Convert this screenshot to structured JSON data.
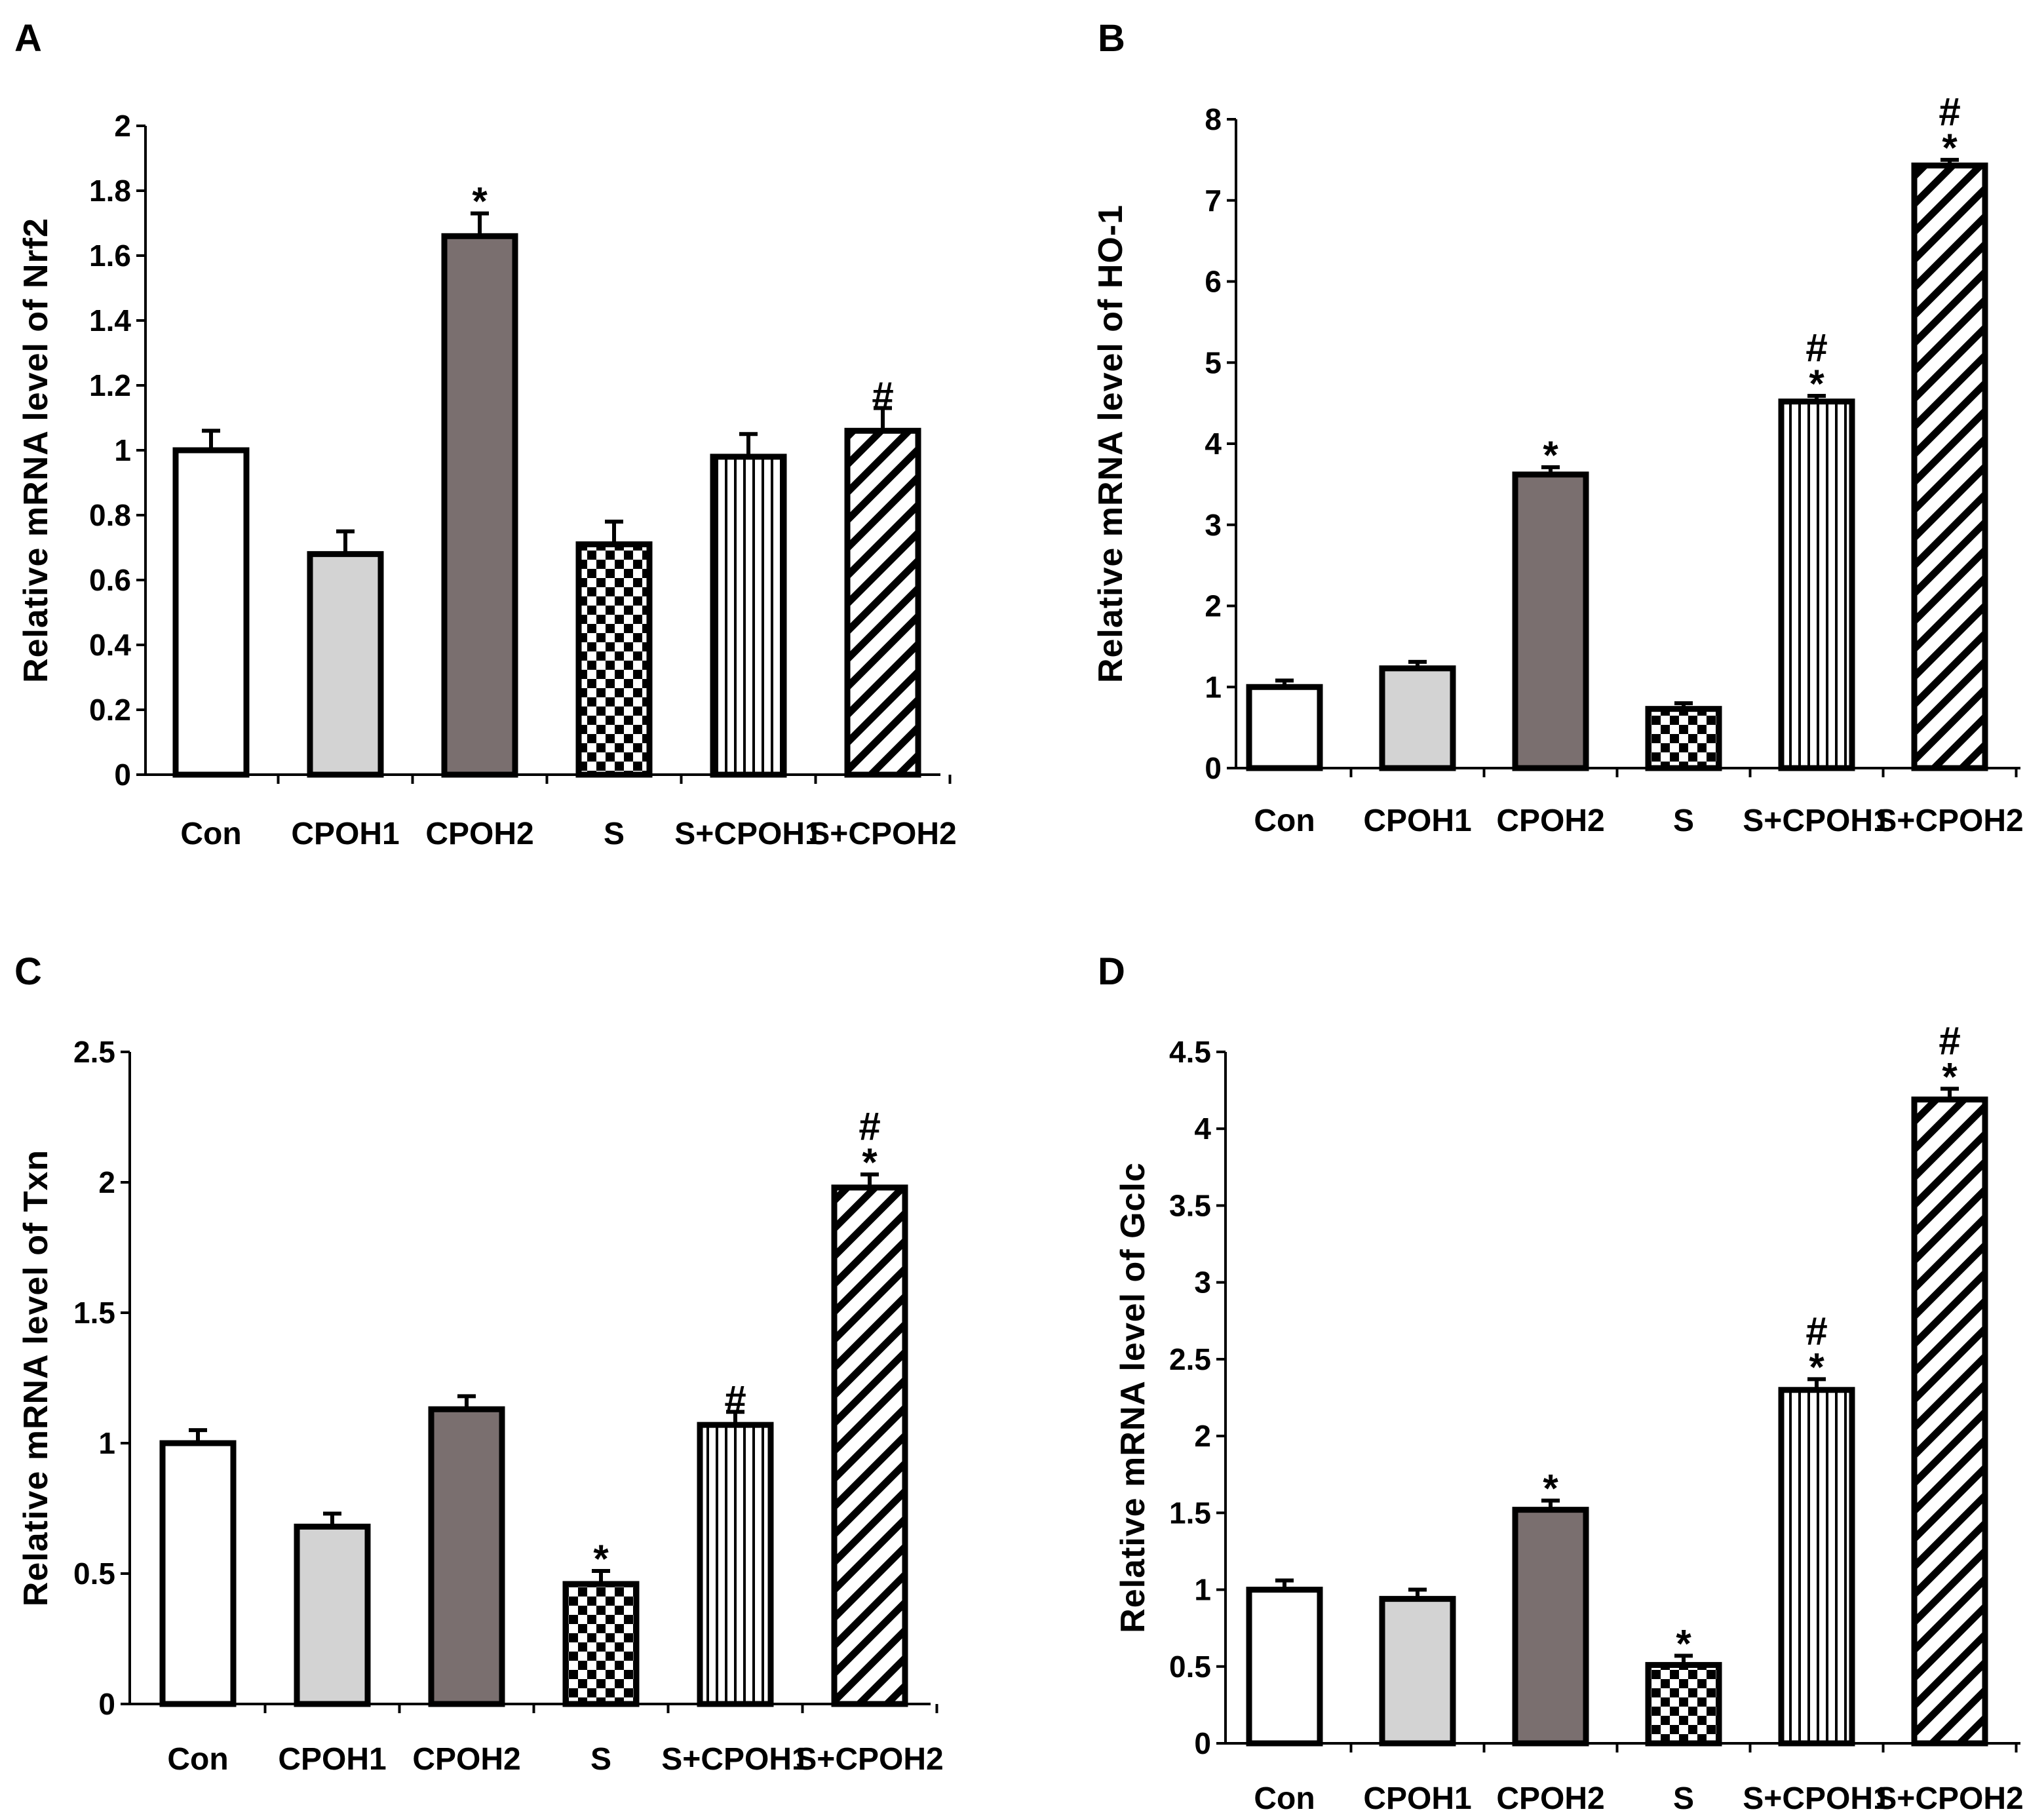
{
  "colors": {
    "Con": "#ffffff",
    "CPOH1": "#d3d3d3",
    "CPOH2": "#7a6f6f",
    "ink": "#000000"
  },
  "chart_data": [
    {
      "panel": "A",
      "type": "bar",
      "ylabel": "Relative mRNA level of Nrf2",
      "categories": [
        "Con",
        "CPOH1",
        "CPOH2",
        "S",
        "S+CPOH1",
        "S+CPOH2"
      ],
      "patterns": [
        "white",
        "lightgray",
        "darkgray",
        "checker",
        "vertical",
        "diagonal"
      ],
      "values": [
        1.0,
        0.68,
        1.66,
        0.71,
        0.98,
        1.06
      ],
      "errors": [
        0.06,
        0.07,
        0.07,
        0.07,
        0.07,
        0.07
      ],
      "sig": [
        "",
        "",
        "*",
        "",
        "",
        "#"
      ],
      "ylim": [
        0,
        2
      ],
      "yticks": [
        0,
        0.2,
        0.4,
        0.6,
        0.8,
        1,
        1.2,
        1.4,
        1.6,
        1.8,
        2
      ],
      "yticklabels": [
        "0",
        "0.2",
        "0.4",
        "0.6",
        "0.8",
        "1",
        "1.2",
        "1.4",
        "1.6",
        "1.8",
        "2"
      ]
    },
    {
      "panel": "B",
      "type": "bar",
      "ylabel": "Relative mRNA level  of HO-1",
      "categories": [
        "Con",
        "CPOH1",
        "CPOH2",
        "S",
        "S+CPOH1",
        "S+CPOH2"
      ],
      "patterns": [
        "white",
        "lightgray",
        "darkgray",
        "checker",
        "vertical",
        "diagonal"
      ],
      "values": [
        1.0,
        1.23,
        3.62,
        0.73,
        4.52,
        7.43
      ],
      "errors": [
        0.08,
        0.08,
        0.09,
        0.07,
        0.07,
        0.07
      ],
      "sig": [
        "",
        "",
        "*",
        "",
        "#\n*",
        "#\n*"
      ],
      "ylim": [
        0,
        8
      ],
      "yticks": [
        0,
        1,
        2,
        3,
        4,
        5,
        6,
        7,
        8
      ],
      "yticklabels": [
        "0",
        "1",
        "2",
        "3",
        "4",
        "5",
        "6",
        "7",
        "8"
      ]
    },
    {
      "panel": "C",
      "type": "bar",
      "ylabel": "Relative mRNA level of Txn",
      "categories": [
        "Con",
        "CPOH1",
        "CPOH2",
        "S",
        "S+CPOH1",
        "S+CPOH2"
      ],
      "patterns": [
        "white",
        "lightgray",
        "darkgray",
        "checker",
        "vertical",
        "diagonal"
      ],
      "values": [
        1.0,
        0.68,
        1.13,
        0.46,
        1.07,
        1.98
      ],
      "errors": [
        0.05,
        0.05,
        0.05,
        0.05,
        0.05,
        0.05
      ],
      "sig": [
        "",
        "",
        "",
        "*",
        "#",
        "#\n*"
      ],
      "ylim": [
        0,
        2.5
      ],
      "yticks": [
        0,
        0.5,
        1,
        1.5,
        2,
        2.5
      ],
      "yticklabels": [
        "0",
        "0.5",
        "1",
        "1.5",
        "2",
        "2.5"
      ]
    },
    {
      "panel": "D",
      "type": "bar",
      "ylabel": "Relative mRNA level of Gclc",
      "categories": [
        "Con",
        "CPOH1",
        "CPOH2",
        "S",
        "S+CPOH1",
        "S+CPOH2"
      ],
      "patterns": [
        "white",
        "lightgray",
        "darkgray",
        "checker",
        "vertical",
        "diagonal"
      ],
      "values": [
        1.0,
        0.94,
        1.52,
        0.51,
        2.3,
        4.19
      ],
      "errors": [
        0.06,
        0.06,
        0.06,
        0.06,
        0.07,
        0.07
      ],
      "sig": [
        "",
        "",
        "*",
        "*",
        "#\n*",
        "#\n*"
      ],
      "ylim": [
        0,
        4.5
      ],
      "yticks": [
        0,
        0.5,
        1,
        1.5,
        2,
        2.5,
        3,
        3.5,
        4,
        4.5
      ],
      "yticklabels": [
        "0",
        "0.5",
        "1",
        "1.5",
        "2",
        "2.5",
        "3",
        "3.5",
        "4",
        "4.5"
      ]
    }
  ]
}
